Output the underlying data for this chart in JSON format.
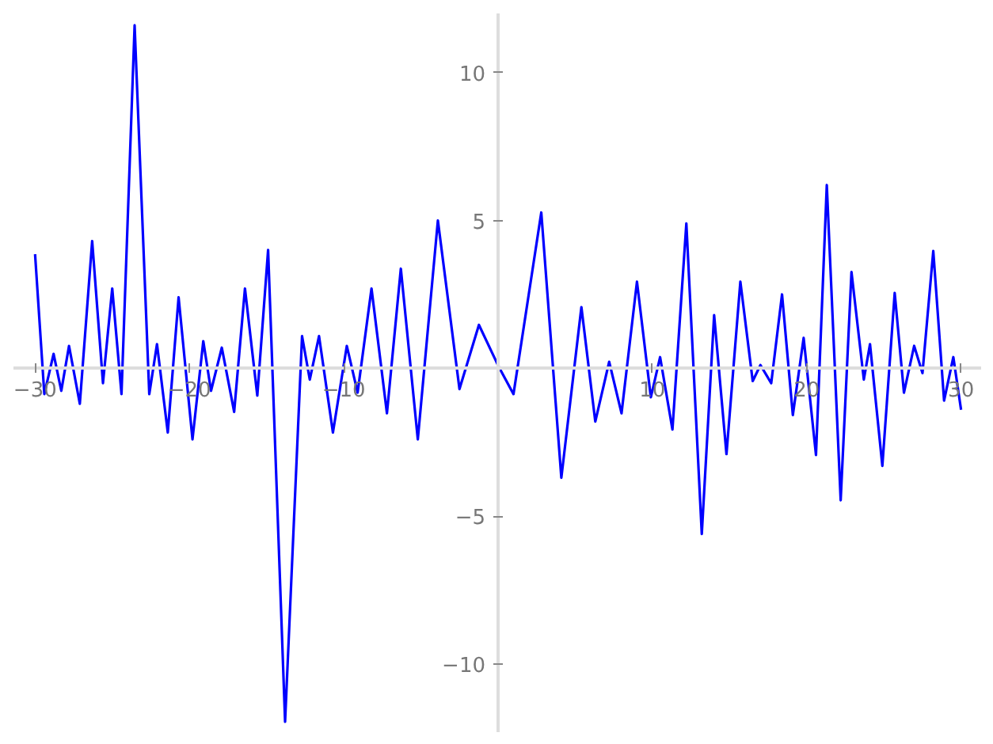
{
  "chart_data": {
    "type": "line",
    "grid": false,
    "marker": "none",
    "line_style": "solid",
    "xlim": [
      -31.4,
      31.3
    ],
    "ylim": [
      -12.3,
      12.0
    ],
    "xticks": [
      {
        "value": -30,
        "label": "−30"
      },
      {
        "value": -20,
        "label": "−20"
      },
      {
        "value": -10,
        "label": "−10"
      },
      10,
      20,
      30
    ],
    "yticks": [
      {
        "value": -10,
        "label": "−10"
      },
      {
        "value": -5,
        "label": "−5"
      },
      5,
      10
    ],
    "series": [
      {
        "color": "#0000ff",
        "x": [
          -30.0,
          -29.4,
          -28.8,
          -28.3,
          -27.8,
          -27.1,
          -26.3,
          -25.6,
          -25.0,
          -24.4,
          -23.55,
          -22.6,
          -22.1,
          -21.4,
          -20.7,
          -19.8,
          -19.1,
          -18.6,
          -17.9,
          -17.1,
          -16.4,
          -15.6,
          -14.9,
          -13.8,
          -12.7,
          -12.2,
          -11.6,
          -10.7,
          -9.8,
          -9.1,
          -8.2,
          -7.2,
          -6.3,
          -5.2,
          -3.9,
          -2.5,
          -1.24,
          0.0,
          1.0,
          2.8,
          4.1,
          5.4,
          6.3,
          7.2,
          8.0,
          9.0,
          9.9,
          10.5,
          11.3,
          12.2,
          13.2,
          14.0,
          14.8,
          15.7,
          16.5,
          17.0,
          17.7,
          18.4,
          19.1,
          19.8,
          20.6,
          21.3,
          22.2,
          22.9,
          23.7,
          24.1,
          24.9,
          25.7,
          26.3,
          26.96,
          27.5,
          28.2,
          28.9,
          29.5,
          30.0
        ],
        "values": [
          3.86,
          -0.87,
          0.49,
          -0.76,
          0.76,
          -1.2,
          4.3,
          -0.5,
          2.7,
          -0.87,
          11.6,
          -0.87,
          0.82,
          -2.17,
          2.4,
          -2.4,
          0.92,
          -0.76,
          0.7,
          -1.47,
          2.7,
          -0.92,
          4.0,
          -11.95,
          1.09,
          -0.38,
          1.09,
          -2.17,
          0.76,
          -0.82,
          2.7,
          -1.52,
          3.37,
          -2.4,
          5.0,
          -0.7,
          1.47,
          0.1,
          -0.87,
          5.27,
          -3.7,
          2.07,
          -1.8,
          0.22,
          -1.52,
          2.93,
          -0.98,
          0.38,
          -2.07,
          4.9,
          -5.6,
          1.8,
          -2.9,
          2.93,
          -0.43,
          0.11,
          -0.5,
          2.5,
          -1.58,
          1.03,
          -2.93,
          6.2,
          -4.46,
          3.26,
          -0.38,
          0.82,
          -3.3,
          2.55,
          -0.82,
          0.76,
          -0.16,
          3.97,
          -1.09,
          0.38,
          -1.4
        ]
      }
    ]
  }
}
